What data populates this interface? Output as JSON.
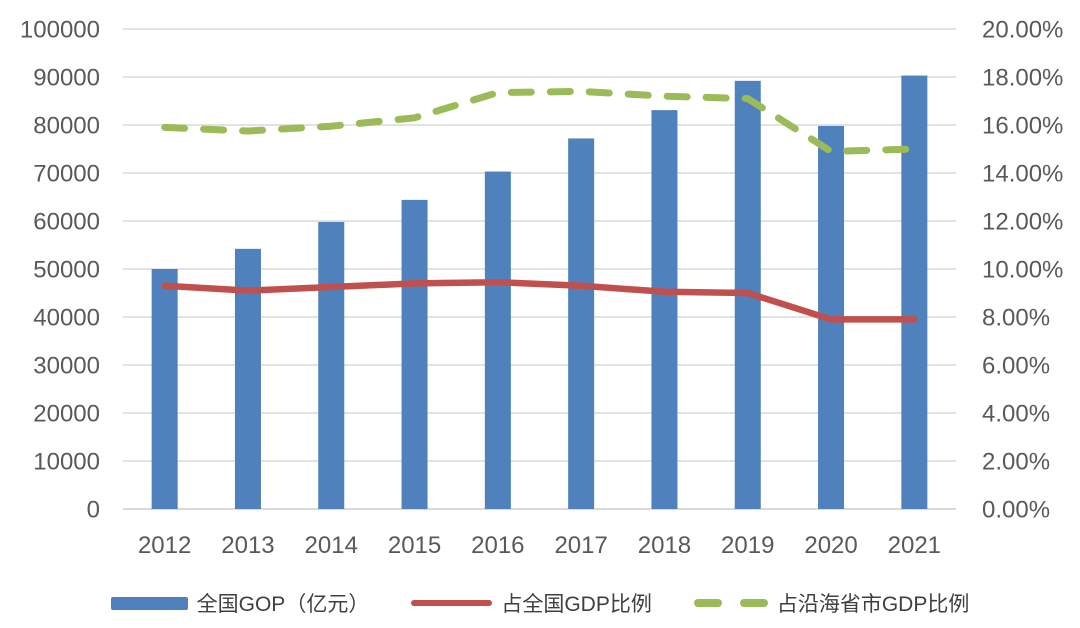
{
  "chart_data": {
    "type": "combo",
    "title": "",
    "categories": [
      "2012",
      "2013",
      "2014",
      "2015",
      "2016",
      "2017",
      "2018",
      "2019",
      "2020",
      "2021"
    ],
    "series": [
      {
        "name": "全国GOP（亿元）",
        "type": "bar",
        "axis": "left",
        "color": "#4F81BD",
        "values": [
          50000,
          54200,
          59800,
          64400,
          70300,
          77200,
          83100,
          89200,
          79800,
          90300
        ]
      },
      {
        "name": "占全国GDP比例",
        "type": "line",
        "line_style": "solid",
        "axis": "right",
        "color": "#C0504D",
        "values": [
          9.3,
          9.1,
          9.25,
          9.4,
          9.45,
          9.3,
          9.05,
          9.0,
          7.9,
          7.9
        ],
        "unit": "%"
      },
      {
        "name": "占沿海省市GDP比例",
        "type": "line",
        "line_style": "dashed",
        "axis": "right",
        "color": "#9BBB59",
        "values": [
          15.9,
          15.75,
          15.95,
          16.3,
          17.35,
          17.4,
          17.2,
          17.1,
          14.9,
          15.0
        ],
        "unit": "%"
      }
    ],
    "left_axis": {
      "min": 0,
      "max": 100000,
      "step": 10000,
      "tick_labels": [
        "0",
        "10000",
        "20000",
        "30000",
        "40000",
        "50000",
        "60000",
        "70000",
        "80000",
        "90000",
        "100000"
      ]
    },
    "right_axis": {
      "min": 0,
      "max": 20,
      "step": 2,
      "tick_labels": [
        "0.00%",
        "2.00%",
        "4.00%",
        "6.00%",
        "8.00%",
        "10.00%",
        "12.00%",
        "14.00%",
        "16.00%",
        "18.00%",
        "20.00%"
      ]
    },
    "grid": true,
    "legend_position": "bottom",
    "colors": {
      "bar": "#4F81BD",
      "line_red": "#C0504D",
      "line_green": "#9BBB59",
      "gridline": "#D9D9D9",
      "axis_line": "#C9C9C9",
      "tick_text": "#595959",
      "legend_text": "#3F3F3F",
      "background": "#FFFFFF"
    }
  }
}
